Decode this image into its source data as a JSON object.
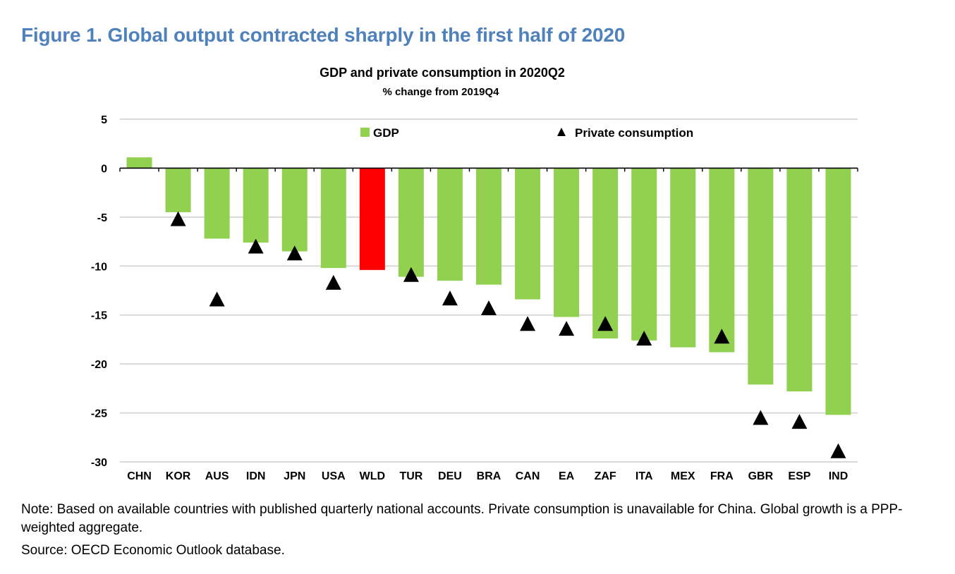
{
  "figure": {
    "title": "Figure 1. Global output contracted sharply in the first half of 2020",
    "note": "Note: Based on available countries with published quarterly national accounts. Private consumption is unavailable for China.  Global growth is a PPP-weighted aggregate.",
    "source": "Source: OECD Economic Outlook database."
  },
  "chart_data": {
    "type": "bar",
    "title": "GDP and private consumption in 2020Q2",
    "subtitle": "% change from 2019Q4",
    "xlabel": "",
    "ylabel": "",
    "ylim": [
      -30,
      5
    ],
    "yticks": [
      5,
      0,
      -5,
      -10,
      -15,
      -20,
      -25,
      -30
    ],
    "grid": true,
    "legend_position": "top",
    "categories": [
      "CHN",
      "KOR",
      "AUS",
      "IDN",
      "JPN",
      "USA",
      "WLD",
      "TUR",
      "DEU",
      "BRA",
      "CAN",
      "EA",
      "ZAF",
      "ITA",
      "MEX",
      "FRA",
      "GBR",
      "ESP",
      "IND"
    ],
    "highlight_category": "WLD",
    "colors": {
      "gdp": "#92d050",
      "highlight": "#ff0000",
      "marker": "#000000",
      "grid": "#d9d9d9",
      "axis": "#000000"
    },
    "series": [
      {
        "name": "GDP",
        "kind": "bar",
        "values": [
          1.1,
          -4.5,
          -7.2,
          -7.6,
          -8.5,
          -10.2,
          -10.4,
          -11.1,
          -11.5,
          -11.9,
          -13.4,
          -15.2,
          -17.4,
          -17.6,
          -18.3,
          -18.8,
          -22.1,
          -22.8,
          -25.2
        ]
      },
      {
        "name": "Private consumption",
        "kind": "marker",
        "values": [
          null,
          -5.2,
          -13.4,
          -8.0,
          -8.7,
          -11.7,
          null,
          -10.9,
          -13.3,
          -14.3,
          -15.9,
          -16.4,
          -15.9,
          -17.4,
          null,
          -17.2,
          -25.5,
          -25.9,
          -28.9
        ]
      }
    ]
  }
}
